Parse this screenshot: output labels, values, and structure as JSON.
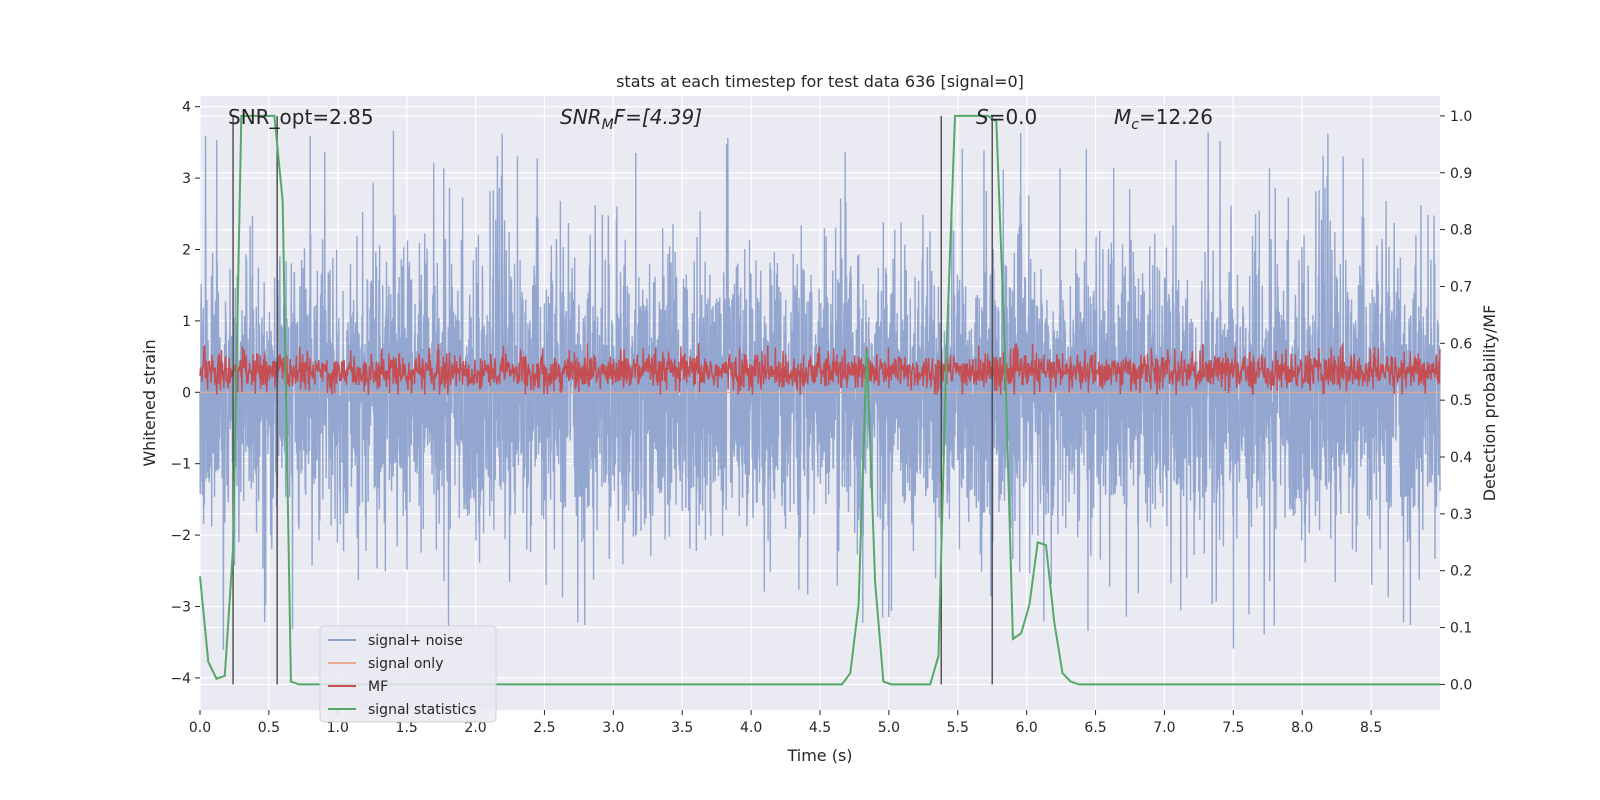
{
  "chart_data": {
    "type": "line",
    "title": "stats at each timestep for test data 636 [signal=0]",
    "xlabel": "Time (s)",
    "ylabel_left": "Whitened strain",
    "ylabel_right": "Detection probability/MF",
    "xlim": [
      0.0,
      9.0
    ],
    "ylim_left": [
      -4.45,
      4.15
    ],
    "ylim_right": [
      -0.045,
      1.035
    ],
    "x_ticks": [
      0.0,
      0.5,
      1.0,
      1.5,
      2.0,
      2.5,
      3.0,
      3.5,
      4.0,
      4.5,
      5.0,
      5.5,
      6.0,
      6.5,
      7.0,
      7.5,
      8.0,
      8.5
    ],
    "x_tick_labels": [
      "0.0",
      "0.5",
      "1.0",
      "1.5",
      "2.0",
      "2.5",
      "3.0",
      "3.5",
      "4.0",
      "4.5",
      "5.0",
      "5.5",
      "6.0",
      "6.5",
      "7.0",
      "7.5",
      "8.0",
      "8.5"
    ],
    "y_left_ticks": [
      -4,
      -3,
      -2,
      -1,
      0,
      1,
      2,
      3,
      4
    ],
    "y_left_tick_labels": [
      "−4",
      "−3",
      "−2",
      "−1",
      "0",
      "1",
      "2",
      "3",
      "4"
    ],
    "y_right_ticks": [
      0.0,
      0.1,
      0.2,
      0.3,
      0.4,
      0.5,
      0.6,
      0.7,
      0.8,
      0.9,
      1.0
    ],
    "y_right_tick_labels": [
      "0.0",
      "0.1",
      "0.2",
      "0.3",
      "0.4",
      "0.5",
      "0.6",
      "0.7",
      "0.8",
      "0.9",
      "1.0"
    ],
    "grid": true,
    "legend_position": "lower-left",
    "annotations": {
      "snr_opt": "SNR_opt=2.85",
      "snr_mf_main": "SNR",
      "snr_mf_sub": "M",
      "snr_mf_rest": "F=[4.39]",
      "s_main": "S",
      "s_rest": "=0.0",
      "mc_main": "M",
      "mc_sub": "c",
      "mc_rest": "=12.26"
    },
    "vertical_lines_x": [
      0.24,
      0.56,
      5.38,
      5.75
    ],
    "series": [
      {
        "name": "signal+ noise",
        "color": "#8ea2cd",
        "axis": "left",
        "kind": "noise",
        "sigma": 1.0,
        "peak_range": [
          -3.9,
          3.8
        ]
      },
      {
        "name": "signal only",
        "color": "#e9a98f",
        "axis": "left",
        "kind": "flat",
        "value": 0.0
      },
      {
        "name": "MF",
        "color": "#c44e52",
        "axis": "right",
        "kind": "noise",
        "center": 0.55,
        "range": [
          0.51,
          0.6
        ]
      },
      {
        "name": "signal statistics",
        "color": "#55a868",
        "axis": "right",
        "kind": "line",
        "x": [
          0.0,
          0.06,
          0.12,
          0.18,
          0.24,
          0.3,
          0.36,
          0.42,
          0.48,
          0.54,
          0.6,
          0.66,
          0.72,
          0.78,
          4.6,
          4.66,
          4.72,
          4.78,
          4.84,
          4.9,
          4.96,
          5.02,
          5.3,
          5.36,
          5.42,
          5.48,
          5.54,
          5.6,
          5.66,
          5.72,
          5.78,
          5.84,
          5.9,
          5.96,
          6.02,
          6.08,
          6.14,
          6.2,
          6.26,
          6.32,
          6.38,
          6.44,
          9.0
        ],
        "y": [
          0.19,
          0.04,
          0.01,
          0.015,
          0.24,
          1.0,
          1.0,
          1.0,
          1.0,
          1.0,
          0.85,
          0.005,
          0.0,
          0.0,
          0.0,
          0.0,
          0.02,
          0.14,
          0.59,
          0.18,
          0.005,
          0.0,
          0.0,
          0.05,
          0.6,
          1.0,
          1.0,
          1.0,
          1.0,
          1.0,
          0.99,
          0.6,
          0.08,
          0.09,
          0.14,
          0.25,
          0.245,
          0.11,
          0.02,
          0.005,
          0.0,
          0.0,
          0.0
        ]
      }
    ]
  }
}
